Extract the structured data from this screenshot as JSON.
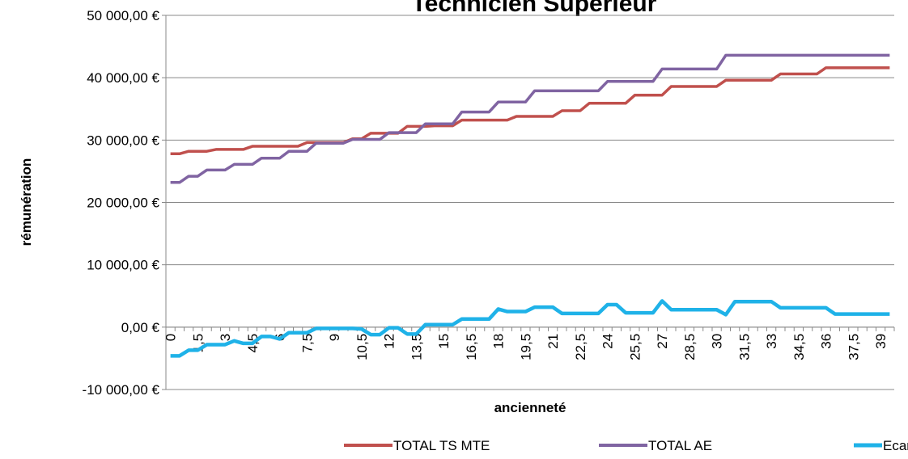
{
  "chart_data": {
    "type": "line",
    "title": "Technicien Supérieur",
    "x_label": "ancienneté",
    "y_label": "rémunération",
    "categories": [
      "0",
      null,
      null,
      "1,5",
      null,
      null,
      "3",
      null,
      null,
      "4,5",
      null,
      null,
      "6",
      null,
      null,
      "7,5",
      null,
      null,
      "9",
      null,
      null,
      "10,5",
      null,
      null,
      "12",
      null,
      null,
      "13,5",
      null,
      null,
      "15",
      null,
      null,
      "16,5",
      null,
      null,
      "18",
      null,
      null,
      "19,5",
      null,
      null,
      "21",
      null,
      null,
      "22,5",
      null,
      null,
      "24",
      null,
      null,
      "25,5",
      null,
      null,
      "27",
      null,
      null,
      "28,5",
      null,
      null,
      "30",
      null,
      null,
      "31,5",
      null,
      null,
      "33",
      null,
      null,
      "34,5",
      null,
      null,
      "36",
      null,
      null,
      "37,5",
      null,
      null,
      "39",
      null
    ],
    "series": [
      {
        "name": "TOTAL TS MTE",
        "color": "#c0504d",
        "values": [
          27800,
          27800,
          28200,
          28200,
          28200,
          28500,
          28500,
          28500,
          28500,
          29000,
          29000,
          29000,
          29000,
          29000,
          29000,
          29600,
          29600,
          29600,
          29600,
          29600,
          30200,
          30200,
          31100,
          31100,
          31100,
          31100,
          32200,
          32200,
          32200,
          32300,
          32300,
          32300,
          33200,
          33200,
          33200,
          33200,
          33200,
          33200,
          33800,
          33800,
          33800,
          33800,
          33800,
          34700,
          34700,
          34700,
          35900,
          35900,
          35900,
          35900,
          35900,
          37200,
          37200,
          37200,
          37200,
          38600,
          38600,
          38600,
          38600,
          38600,
          38600,
          39600,
          39600,
          39600,
          39600,
          39600,
          39600,
          40600,
          40600,
          40600,
          40600,
          40600,
          41600,
          41600,
          41600,
          41600,
          41600,
          41600,
          41600,
          41600
        ]
      },
      {
        "name": "TOTAL AE",
        "color": "#8064a2",
        "values": [
          23200,
          23200,
          24200,
          24200,
          25200,
          25200,
          25200,
          26100,
          26100,
          26100,
          27100,
          27100,
          27100,
          28200,
          28200,
          28200,
          29500,
          29500,
          29500,
          29500,
          30100,
          30100,
          30100,
          30100,
          31200,
          31200,
          31200,
          31200,
          32600,
          32600,
          32600,
          32600,
          34500,
          34500,
          34500,
          34500,
          36100,
          36100,
          36100,
          36100,
          37900,
          37900,
          37900,
          37900,
          37900,
          37900,
          37900,
          37900,
          39400,
          39400,
          39400,
          39400,
          39400,
          39400,
          41400,
          41400,
          41400,
          41400,
          41400,
          41400,
          41400,
          43600,
          43600,
          43600,
          43600,
          43600,
          43600,
          43600,
          43600,
          43600,
          43600,
          43600,
          43600,
          43600,
          43600,
          43600,
          43600,
          43600,
          43600,
          43600
        ]
      },
      {
        "name": "Ecart",
        "color": "#1fb2e8",
        "values": [
          -4600,
          -4600,
          -3700,
          -3700,
          -2800,
          -2800,
          -2800,
          -2200,
          -2600,
          -2600,
          -1500,
          -1500,
          -1900,
          -900,
          -900,
          -900,
          -200,
          -200,
          -200,
          -200,
          -200,
          -300,
          -1200,
          -1200,
          -100,
          -100,
          -1100,
          -1100,
          400,
          400,
          400,
          400,
          1300,
          1300,
          1300,
          1300,
          2900,
          2500,
          2500,
          2500,
          3200,
          3200,
          3200,
          2200,
          2200,
          2200,
          2200,
          2200,
          3600,
          3600,
          2300,
          2300,
          2300,
          2300,
          4200,
          2800,
          2800,
          2800,
          2800,
          2800,
          2800,
          2000,
          4100,
          4100,
          4100,
          4100,
          4100,
          3100,
          3100,
          3100,
          3100,
          3100,
          3100,
          2100,
          2100,
          2100,
          2100,
          2100,
          2100,
          2100
        ]
      }
    ],
    "ylim": [
      -10000,
      50000
    ],
    "yticks": [
      {
        "value": -10000,
        "label": "-10 000,00 €"
      },
      {
        "value": 0,
        "label": "0,00 €"
      },
      {
        "value": 10000,
        "label": "10 000,00 €"
      },
      {
        "value": 20000,
        "label": "20 000,00 €"
      },
      {
        "value": 30000,
        "label": "30 000,00 €"
      },
      {
        "value": 40000,
        "label": "40 000,00 €"
      },
      {
        "value": 50000,
        "label": "50 000,00 €"
      }
    ],
    "grid": true,
    "legend": "bottom"
  }
}
